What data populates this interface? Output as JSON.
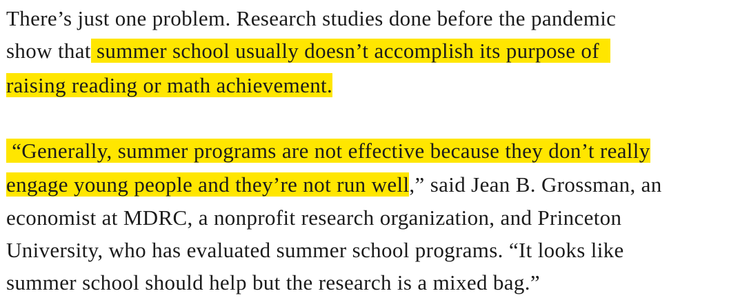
{
  "highlight_color": "#ffe600",
  "paragraphs": [
    {
      "lines": [
        {
          "plain_before": "There’s just one problem. Research studies done before the pandemic",
          "highlight": "",
          "plain_after": ""
        },
        {
          "plain_before": "show that",
          "highlight": " summer school usually doesn’t accomplish its purpose of  ",
          "plain_after": ""
        },
        {
          "plain_before": "",
          "highlight": "raising reading or math achievement.",
          "plain_after": ""
        }
      ]
    },
    {
      "lines": [
        {
          "plain_before": "",
          "highlight": " “Generally, summer programs are not effective because they don’t really",
          "plain_after": ""
        },
        {
          "plain_before": "",
          "highlight": "engage young people and they’re not run well",
          "plain_after": ",” said Jean B. Grossman, an"
        },
        {
          "plain_before": "economist at MDRC, a nonprofit research organization, and Princeton",
          "highlight": "",
          "plain_after": ""
        },
        {
          "plain_before": "University, who has evaluated summer school programs. “It looks like",
          "highlight": "",
          "plain_after": ""
        },
        {
          "plain_before": "summer school should help but the research is a mixed bag.”",
          "highlight": "",
          "plain_after": ""
        }
      ]
    }
  ]
}
